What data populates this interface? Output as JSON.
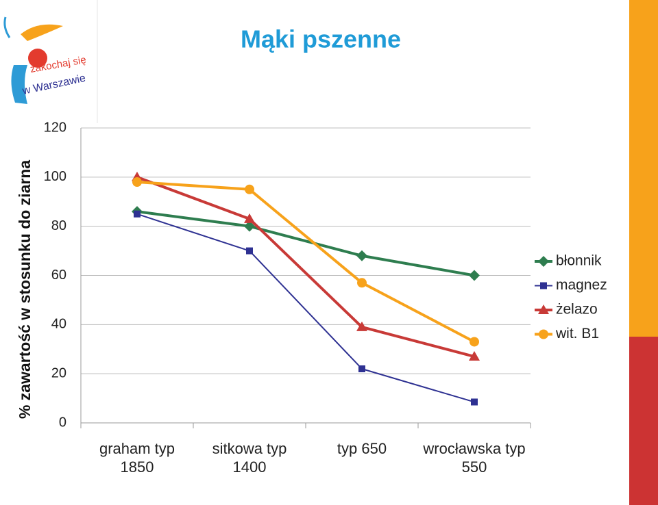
{
  "logo": {
    "line1": "zakochaj się",
    "line2": "w Warszawie"
  },
  "chart_data": {
    "type": "line",
    "title": "Mąki pszenne",
    "y_label": "% zawartość w stosunku do ziarna",
    "categories": [
      "graham typ 1850",
      "sitkowa typ 1400",
      "typ 650",
      "wrocławska typ 550"
    ],
    "series": [
      {
        "name": "błonnik",
        "color": "#2e7d4f",
        "marker": "diamond",
        "values": [
          86,
          80,
          68,
          60
        ]
      },
      {
        "name": "magnez",
        "color": "#2e3192",
        "marker": "square",
        "values": [
          85,
          70,
          22,
          8.5
        ]
      },
      {
        "name": "żelazo",
        "color": "#c83a37",
        "marker": "triangle",
        "values": [
          100,
          83,
          39,
          27
        ]
      },
      {
        "name": "wit. B1",
        "color": "#f7a21b",
        "marker": "circle",
        "values": [
          98,
          95,
          57,
          33
        ]
      }
    ],
    "ylim": [
      0,
      120
    ],
    "yticks": [
      0,
      20,
      40,
      60,
      80,
      100,
      120
    ],
    "grid": true,
    "legend": "right"
  }
}
